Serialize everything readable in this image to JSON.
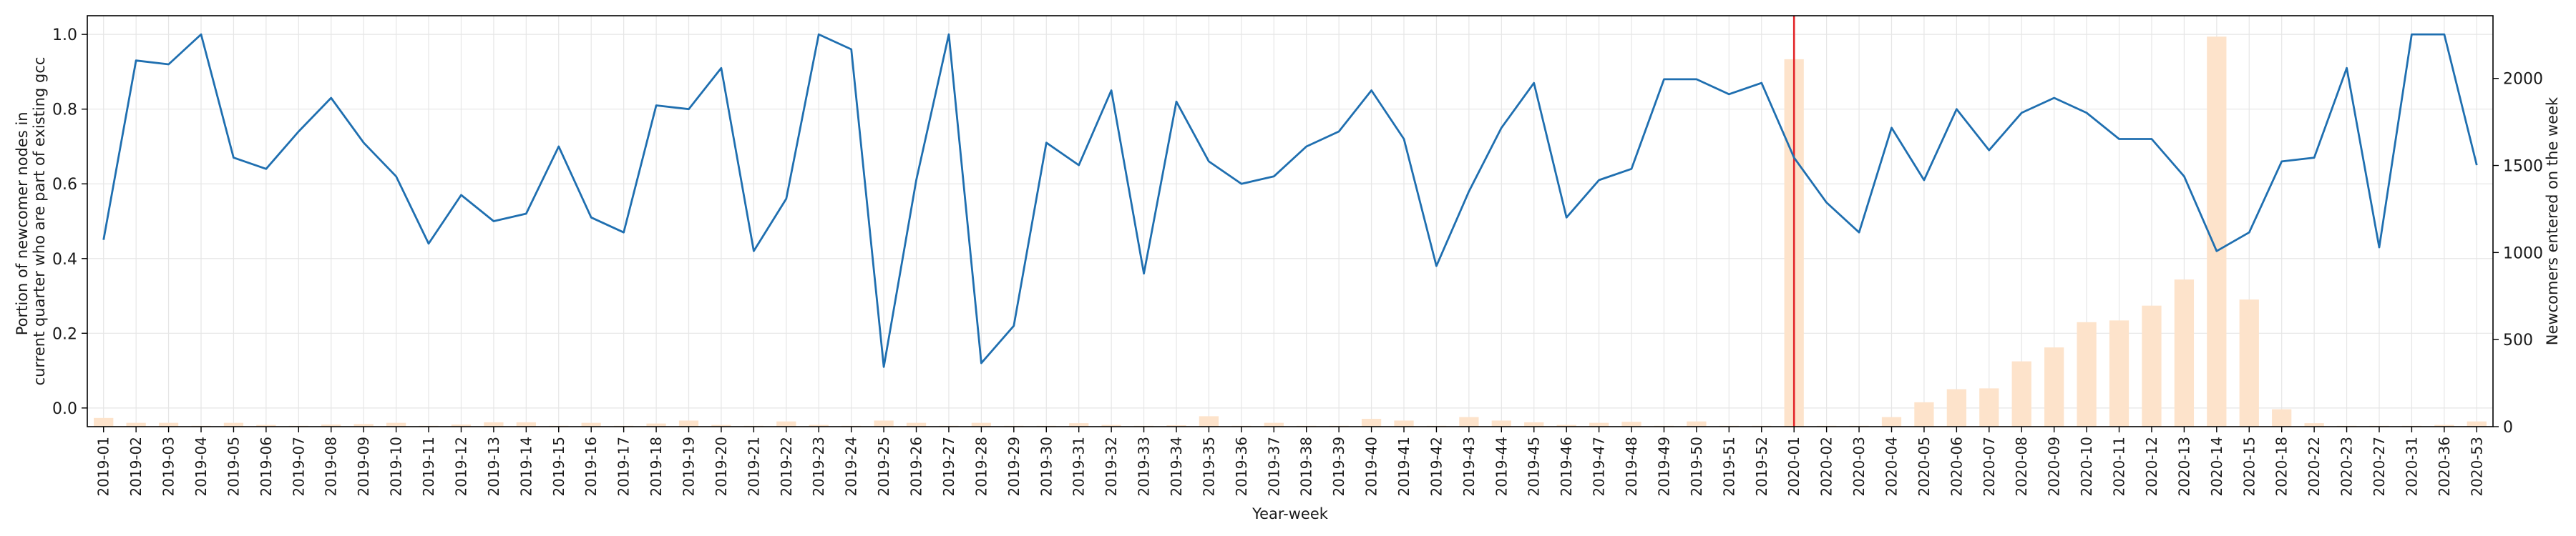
{
  "chart_data": {
    "type": "bar+line",
    "title": "",
    "xlabel": "Year-week",
    "ylabel_left": [
      "Portion of newcomer nodes in",
      "current quarter who are part of existing gcc"
    ],
    "ylabel_right": "Newcomers entered on the week",
    "ylim_left": [
      -0.05,
      1.05
    ],
    "ylim_right": [
      0,
      2360
    ],
    "yticks_left": [
      "0.0",
      "0.2",
      "0.4",
      "0.6",
      "0.8",
      "1.0"
    ],
    "yticks_right": [
      "0",
      "500",
      "1000",
      "1500",
      "2000"
    ],
    "grid": true,
    "reference_line": {
      "x": "2020-01",
      "color": "#e3262a"
    },
    "categories": [
      "2019-01",
      "2019-02",
      "2019-03",
      "2019-04",
      "2019-05",
      "2019-06",
      "2019-07",
      "2019-08",
      "2019-09",
      "2019-10",
      "2019-11",
      "2019-12",
      "2019-13",
      "2019-14",
      "2019-15",
      "2019-16",
      "2019-17",
      "2019-18",
      "2019-19",
      "2019-20",
      "2019-21",
      "2019-22",
      "2019-23",
      "2019-24",
      "2019-25",
      "2019-26",
      "2019-27",
      "2019-28",
      "2019-29",
      "2019-30",
      "2019-31",
      "2019-32",
      "2019-33",
      "2019-34",
      "2019-35",
      "2019-36",
      "2019-37",
      "2019-38",
      "2019-39",
      "2019-40",
      "2019-41",
      "2019-42",
      "2019-43",
      "2019-44",
      "2019-45",
      "2019-46",
      "2019-47",
      "2019-48",
      "2019-49",
      "2019-50",
      "2019-51",
      "2019-52",
      "2020-01",
      "2020-02",
      "2020-03",
      "2020-04",
      "2020-05",
      "2020-06",
      "2020-07",
      "2020-08",
      "2020-09",
      "2020-10",
      "2020-11",
      "2020-12",
      "2020-13",
      "2020-14",
      "2020-15",
      "2020-18",
      "2020-22",
      "2020-23",
      "2020-27",
      "2020-31",
      "2020-36",
      "2020-53"
    ],
    "series": [
      {
        "axis": "right",
        "kind": "bar",
        "color": "#fde3cb",
        "values": [
          50,
          22,
          22,
          5,
          22,
          10,
          5,
          12,
          15,
          22,
          5,
          12,
          25,
          25,
          5,
          22,
          5,
          18,
          35,
          10,
          5,
          30,
          10,
          5,
          35,
          22,
          5,
          22,
          5,
          5,
          20,
          10,
          5,
          8,
          60,
          5,
          22,
          5,
          5,
          45,
          35,
          5,
          55,
          35,
          25,
          10,
          22,
          28,
          5,
          30,
          5,
          5,
          2110,
          5,
          5,
          55,
          140,
          215,
          220,
          375,
          455,
          600,
          610,
          695,
          845,
          2240,
          730,
          100,
          20,
          5,
          5,
          5,
          10,
          30
        ]
      },
      {
        "axis": "left",
        "kind": "line",
        "color": "#1f6fb0",
        "values": [
          0.45,
          0.93,
          0.92,
          1.0,
          0.67,
          0.64,
          0.74,
          0.83,
          0.71,
          0.62,
          0.44,
          0.57,
          0.5,
          0.52,
          0.7,
          0.51,
          0.47,
          0.81,
          0.8,
          0.91,
          0.42,
          0.56,
          1.0,
          0.96,
          0.11,
          0.61,
          1.0,
          0.12,
          0.22,
          0.71,
          0.65,
          0.85,
          0.36,
          0.82,
          0.66,
          0.6,
          0.62,
          0.7,
          0.74,
          0.85,
          0.72,
          0.38,
          0.58,
          0.75,
          0.87,
          0.51,
          0.61,
          0.64,
          0.88,
          0.88,
          0.84,
          0.87,
          0.67,
          0.55,
          0.47,
          0.75,
          0.61,
          0.8,
          0.69,
          0.79,
          0.83,
          0.79,
          0.72,
          0.72,
          0.62,
          0.42,
          0.47,
          0.66,
          0.67,
          0.91,
          0.43,
          1.0,
          1.0,
          0.65
        ]
      }
    ]
  }
}
